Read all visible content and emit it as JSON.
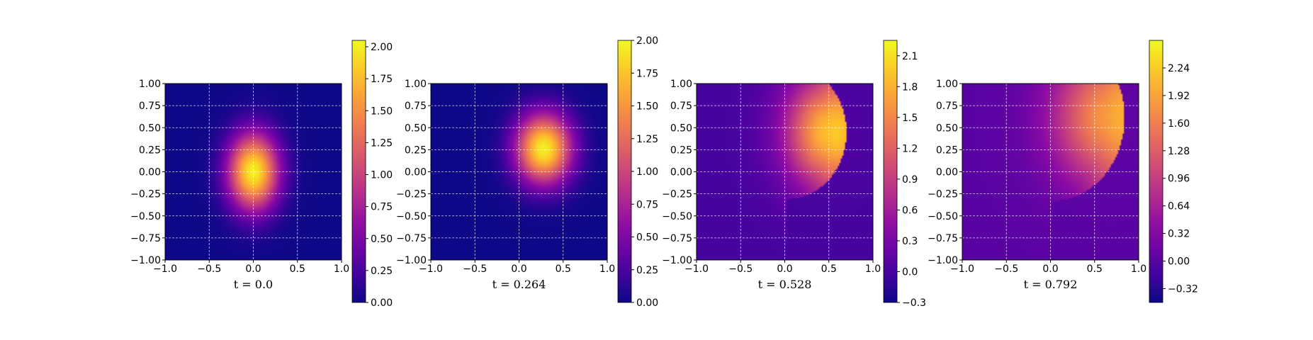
{
  "chart_data": [
    {
      "type": "heatmap",
      "caption": "t = 0.0",
      "xlim": [
        -1,
        1
      ],
      "ylim": [
        -1,
        1
      ],
      "xticks": [
        "−1.0",
        "−0.5",
        "0.0",
        "0.5",
        "1.0"
      ],
      "yticks": [
        "1.00",
        "0.75",
        "0.50",
        "0.25",
        "0.00",
        "−0.25",
        "−0.50",
        "−0.75",
        "−1.00"
      ],
      "grid": true,
      "colormap": "plasma",
      "colorbar": {
        "range": [
          0.0,
          2.05
        ],
        "ticks": [
          0.0,
          0.25,
          0.5,
          0.75,
          1.0,
          1.25,
          1.5,
          1.75,
          2.0
        ],
        "tick_labels": [
          "0.00",
          "0.25",
          "0.50",
          "0.75",
          "1.00",
          "1.25",
          "1.50",
          "1.75",
          "2.00"
        ]
      },
      "field": {
        "center": [
          0.0,
          0.0
        ],
        "radii": [
          0.36,
          0.55
        ],
        "peak": 2.0,
        "front_x": null
      }
    },
    {
      "type": "heatmap",
      "caption": "t = 0.264",
      "xlim": [
        -1,
        1
      ],
      "ylim": [
        -1,
        1
      ],
      "xticks": [
        "−1.0",
        "−0.5",
        "0.0",
        "0.5",
        "1.0"
      ],
      "yticks": [
        "1.00",
        "0.75",
        "0.50",
        "0.25",
        "0.00",
        "−0.25",
        "−0.50",
        "−0.75",
        "−1.00"
      ],
      "grid": true,
      "colormap": "plasma",
      "colorbar": {
        "range": [
          0.0,
          2.0
        ],
        "ticks": [
          0.0,
          0.25,
          0.5,
          0.75,
          1.0,
          1.25,
          1.5,
          1.75,
          2.0
        ],
        "tick_labels": [
          "0.00",
          "0.25",
          "0.50",
          "0.75",
          "1.00",
          "1.25",
          "1.50",
          "1.75",
          "2.00"
        ]
      },
      "field": {
        "center": [
          0.28,
          0.26
        ],
        "radii": [
          0.4,
          0.5
        ],
        "peak": 1.95,
        "front_x": null
      }
    },
    {
      "type": "heatmap",
      "caption": "t = 0.528",
      "xlim": [
        -1,
        1
      ],
      "ylim": [
        -1,
        1
      ],
      "xticks": [
        "−1.0",
        "−0.5",
        "0.0",
        "0.5",
        "1.0"
      ],
      "yticks": [
        "1.00",
        "0.75",
        "0.50",
        "0.25",
        "0.00",
        "−0.25",
        "−0.50",
        "−0.75",
        "−1.00"
      ],
      "grid": true,
      "colormap": "plasma",
      "colorbar": {
        "range": [
          -0.3,
          2.25
        ],
        "ticks": [
          -0.3,
          0.0,
          0.3,
          0.6,
          0.9,
          1.2,
          1.5,
          1.8,
          2.1
        ],
        "tick_labels": [
          "−0.3",
          "0.0",
          "0.3",
          "0.6",
          "0.9",
          "1.2",
          "1.5",
          "1.8",
          "2.1"
        ]
      },
      "field": {
        "center": [
          0.5,
          0.45
        ],
        "radii": [
          0.6,
          0.8
        ],
        "peak": 1.9,
        "front_x": 0.68
      }
    },
    {
      "type": "heatmap",
      "caption": "t = 0.792",
      "xlim": [
        -1,
        1
      ],
      "ylim": [
        -1,
        1
      ],
      "xticks": [
        "−1.0",
        "−0.5",
        "0.0",
        "0.5",
        "1.0"
      ],
      "yticks": [
        "1.00",
        "0.75",
        "0.50",
        "0.25",
        "0.00",
        "−0.25",
        "−0.50",
        "−0.75",
        "−1.00"
      ],
      "grid": true,
      "colormap": "plasma",
      "colorbar": {
        "range": [
          -0.48,
          2.56
        ],
        "ticks": [
          -0.32,
          0.0,
          0.32,
          0.64,
          0.96,
          1.28,
          1.6,
          1.92,
          2.24
        ],
        "tick_labels": [
          "−0.32",
          "0.00",
          "0.32",
          "0.64",
          "0.96",
          "1.28",
          "1.60",
          "1.92",
          "2.24"
        ]
      },
      "field": {
        "center": [
          0.68,
          0.62
        ],
        "radii": [
          0.8,
          1.0
        ],
        "peak": 1.85,
        "front_x": 0.82
      }
    }
  ]
}
